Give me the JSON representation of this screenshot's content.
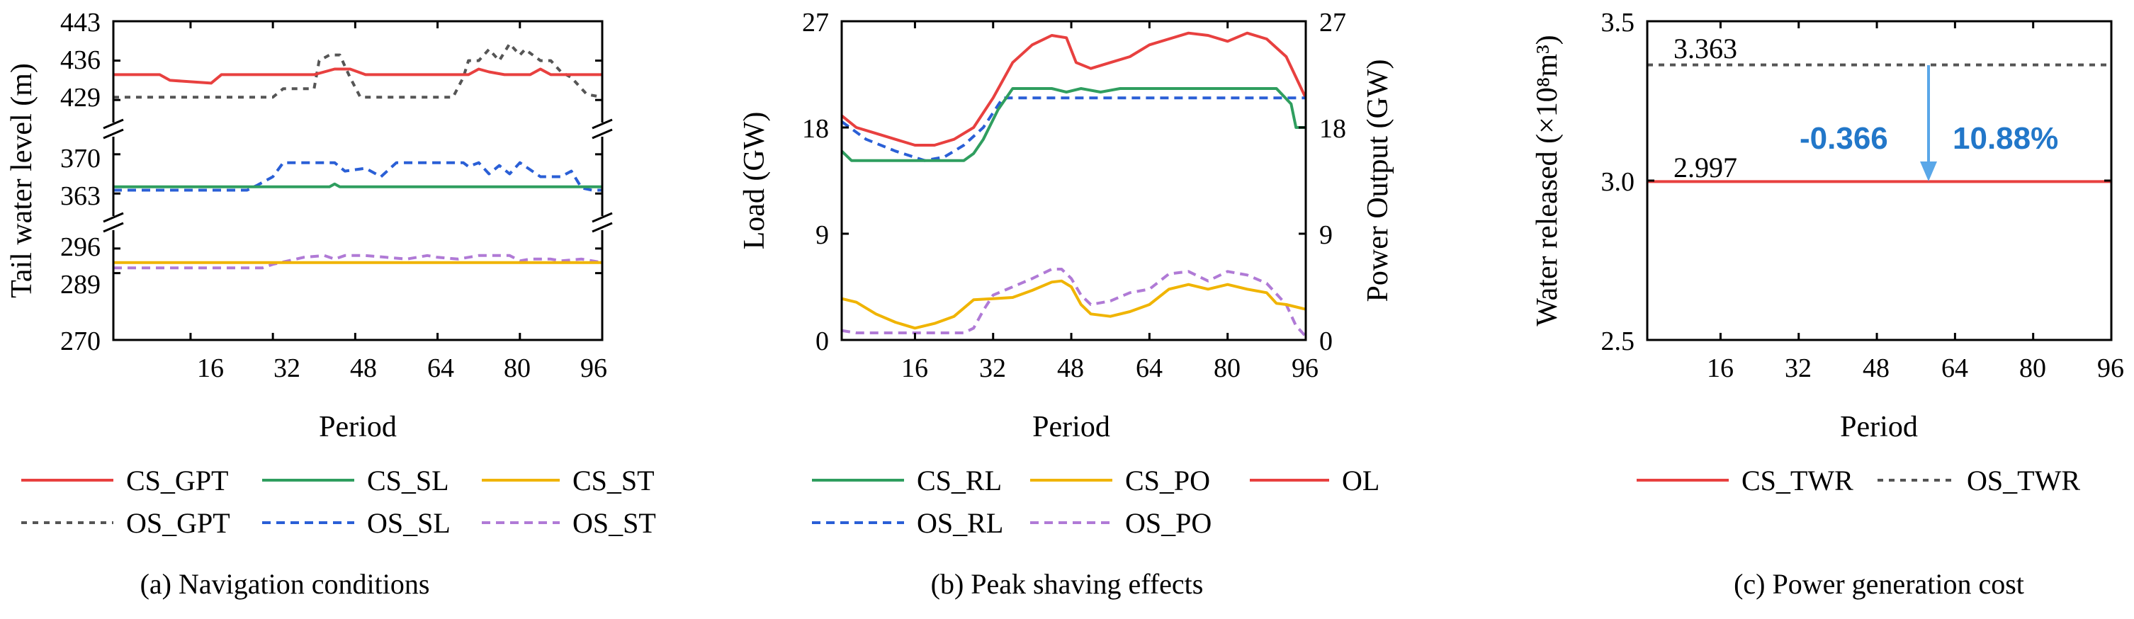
{
  "colors": {
    "gpt_red": "#e8403f",
    "sl_green": "#2f9e5f",
    "st_orange": "#f0b400",
    "os_gray": "#555555",
    "os_blue": "#2a5fd6",
    "os_purple": "#b07ad6",
    "arrow_blue": "#5aa7e8",
    "annotation_blue": "#2277c9"
  },
  "chart_data": [
    {
      "type": "line",
      "caption": "(a) Navigation conditions",
      "xlabel": "Period",
      "ylabel": "Tail water level (m)",
      "xlim": [
        1,
        96
      ],
      "xticks": [
        "16",
        "32",
        "48",
        "64",
        "80",
        "96"
      ],
      "broken_axis": true,
      "yticks": [
        "443",
        "436",
        "429",
        "370",
        "363",
        "296",
        "289",
        "270"
      ],
      "legend": [
        {
          "name": "CS_GPT",
          "style": "solid",
          "color": "#e8403f"
        },
        {
          "name": "CS_SL",
          "style": "solid",
          "color": "#2f9e5f"
        },
        {
          "name": "CS_ST",
          "style": "solid",
          "color": "#f0b400"
        },
        {
          "name": "OS_GPT",
          "style": "dashed",
          "color": "#555555"
        },
        {
          "name": "OS_SL",
          "style": "dashed",
          "color": "#2a5fd6"
        },
        {
          "name": "OS_ST",
          "style": "dashed",
          "color": "#b07ad6"
        }
      ],
      "series": [
        {
          "name": "CS_GPT",
          "points": [
            [
              1,
              433.5
            ],
            [
              10,
              433.5
            ],
            [
              12,
              432.5
            ],
            [
              20,
              432
            ],
            [
              22,
              433.5
            ],
            [
              40,
              433.5
            ],
            [
              44,
              434.5
            ],
            [
              47,
              434.5
            ],
            [
              50,
              433.5
            ],
            [
              70,
              433.5
            ],
            [
              72,
              434.5
            ],
            [
              74,
              434
            ],
            [
              77,
              433.5
            ],
            [
              82,
              433.5
            ],
            [
              84,
              434.5
            ],
            [
              86,
              433.5
            ],
            [
              96,
              433.5
            ]
          ]
        },
        {
          "name": "OS_GPT",
          "points": [
            [
              1,
              429.5
            ],
            [
              32,
              429.5
            ],
            [
              34,
              431
            ],
            [
              40,
              431
            ],
            [
              41,
              436
            ],
            [
              43,
              437
            ],
            [
              45,
              437
            ],
            [
              47,
              433
            ],
            [
              49,
              429.5
            ],
            [
              63,
              429.5
            ],
            [
              67,
              429.5
            ],
            [
              69,
              433
            ],
            [
              70,
              436
            ],
            [
              72,
              436
            ],
            [
              74,
              438
            ],
            [
              76,
              436
            ],
            [
              78,
              439
            ],
            [
              80,
              437
            ],
            [
              81,
              438
            ],
            [
              84,
              436
            ],
            [
              86,
              436
            ],
            [
              88,
              434
            ],
            [
              90,
              433
            ],
            [
              93,
              430
            ],
            [
              96,
              429.5
            ]
          ]
        },
        {
          "name": "CS_SL",
          "points": [
            [
              1,
              364.2
            ],
            [
              43,
              364.2
            ],
            [
              44,
              364.7
            ],
            [
              45,
              364.2
            ],
            [
              96,
              364.2
            ]
          ]
        },
        {
          "name": "OS_SL",
          "points": [
            [
              1,
              363.6
            ],
            [
              27,
              363.6
            ],
            [
              29,
              364.5
            ],
            [
              32,
              366
            ],
            [
              34,
              368.5
            ],
            [
              44,
              368.5
            ],
            [
              46,
              367
            ],
            [
              50,
              367.5
            ],
            [
              53,
              366
            ],
            [
              56,
              368.5
            ],
            [
              69,
              368.5
            ],
            [
              70,
              367.8
            ],
            [
              72,
              368.5
            ],
            [
              74,
              366.5
            ],
            [
              76,
              368
            ],
            [
              78,
              366.5
            ],
            [
              80,
              368.5
            ],
            [
              84,
              366
            ],
            [
              88,
              366
            ],
            [
              90,
              367
            ],
            [
              92,
              364
            ],
            [
              94,
              363.6
            ],
            [
              96,
              363.6
            ]
          ]
        },
        {
          "name": "CS_ST",
          "points": [
            [
              1,
              292
            ],
            [
              96,
              292
            ]
          ]
        },
        {
          "name": "OS_ST",
          "points": [
            [
              1,
              290.5
            ],
            [
              30,
              290.5
            ],
            [
              32,
              291.5
            ],
            [
              38,
              293.5
            ],
            [
              42,
              294
            ],
            [
              44,
              293
            ],
            [
              46,
              294
            ],
            [
              50,
              294
            ],
            [
              54,
              293.5
            ],
            [
              58,
              293
            ],
            [
              62,
              294
            ],
            [
              64,
              293.5
            ],
            [
              68,
              293
            ],
            [
              72,
              294
            ],
            [
              78,
              294
            ],
            [
              80,
              292.5
            ],
            [
              82,
              293
            ],
            [
              86,
              293
            ],
            [
              88,
              292.5
            ],
            [
              92,
              293
            ],
            [
              96,
              292
            ]
          ]
        }
      ]
    },
    {
      "type": "line",
      "caption": "(b) Peak shaving effects",
      "xlabel": "Period",
      "ylabel": "Load (GW)",
      "ylabel_right": "Power Output (GW)",
      "xlim": [
        1,
        96
      ],
      "ylim": [
        0,
        27
      ],
      "xticks": [
        "16",
        "32",
        "48",
        "64",
        "80",
        "96"
      ],
      "yticks": [
        "0",
        "9",
        "18",
        "27"
      ],
      "legend": [
        {
          "name": "CS_RL",
          "style": "solid",
          "color": "#2f9e5f"
        },
        {
          "name": "CS_PO",
          "style": "solid",
          "color": "#f0b400"
        },
        {
          "name": "OL",
          "style": "solid",
          "color": "#e8403f"
        },
        {
          "name": "OS_RL",
          "style": "dashed",
          "color": "#2a5fd6"
        },
        {
          "name": "OS_PO",
          "style": "dashed",
          "color": "#b07ad6"
        }
      ],
      "series": [
        {
          "name": "OL",
          "points": [
            [
              1,
              19
            ],
            [
              4,
              18
            ],
            [
              8,
              17.5
            ],
            [
              12,
              17
            ],
            [
              16,
              16.5
            ],
            [
              20,
              16.5
            ],
            [
              24,
              17
            ],
            [
              28,
              18
            ],
            [
              32,
              20.5
            ],
            [
              36,
              23.5
            ],
            [
              40,
              25
            ],
            [
              44,
              25.8
            ],
            [
              47,
              25.6
            ],
            [
              49,
              23.5
            ],
            [
              52,
              23
            ],
            [
              56,
              23.5
            ],
            [
              60,
              24
            ],
            [
              64,
              25
            ],
            [
              68,
              25.5
            ],
            [
              72,
              26
            ],
            [
              76,
              25.8
            ],
            [
              80,
              25.3
            ],
            [
              84,
              26
            ],
            [
              88,
              25.5
            ],
            [
              92,
              24
            ],
            [
              96,
              20.5
            ]
          ]
        },
        {
          "name": "CS_RL",
          "points": [
            [
              1,
              16
            ],
            [
              3,
              15.2
            ],
            [
              26,
              15.2
            ],
            [
              28,
              15.8
            ],
            [
              30,
              17
            ],
            [
              33,
              19.5
            ],
            [
              36,
              21.3
            ],
            [
              44,
              21.3
            ],
            [
              47,
              21
            ],
            [
              50,
              21.3
            ],
            [
              54,
              21
            ],
            [
              58,
              21.3
            ],
            [
              90,
              21.3
            ],
            [
              93,
              20
            ],
            [
              94,
              18
            ],
            [
              96,
              18
            ]
          ]
        },
        {
          "name": "OS_RL",
          "points": [
            [
              1,
              18.5
            ],
            [
              6,
              17
            ],
            [
              12,
              16
            ],
            [
              18,
              15.2
            ],
            [
              22,
              15.5
            ],
            [
              26,
              16.5
            ],
            [
              30,
              18
            ],
            [
              34,
              20.5
            ],
            [
              36,
              20.5
            ],
            [
              96,
              20.5
            ]
          ]
        },
        {
          "name": "CS_PO",
          "points": [
            [
              1,
              3.5
            ],
            [
              4,
              3.2
            ],
            [
              8,
              2.2
            ],
            [
              12,
              1.5
            ],
            [
              16,
              1
            ],
            [
              20,
              1.4
            ],
            [
              24,
              2
            ],
            [
              28,
              3.4
            ],
            [
              32,
              3.5
            ],
            [
              36,
              3.6
            ],
            [
              40,
              4.2
            ],
            [
              44,
              4.9
            ],
            [
              46,
              5
            ],
            [
              48,
              4.5
            ],
            [
              50,
              3
            ],
            [
              52,
              2.2
            ],
            [
              56,
              2
            ],
            [
              60,
              2.4
            ],
            [
              64,
              3
            ],
            [
              68,
              4.3
            ],
            [
              72,
              4.7
            ],
            [
              76,
              4.3
            ],
            [
              80,
              4.7
            ],
            [
              84,
              4.3
            ],
            [
              88,
              4
            ],
            [
              90,
              3.1
            ],
            [
              92,
              3
            ],
            [
              96,
              2.6
            ]
          ]
        },
        {
          "name": "OS_PO",
          "points": [
            [
              1,
              0.8
            ],
            [
              4,
              0.6
            ],
            [
              26,
              0.6
            ],
            [
              28,
              1
            ],
            [
              30,
              2.5
            ],
            [
              32,
              3.8
            ],
            [
              36,
              4.5
            ],
            [
              40,
              5.2
            ],
            [
              44,
              6
            ],
            [
              46,
              6
            ],
            [
              48,
              5.2
            ],
            [
              50,
              3.8
            ],
            [
              52,
              3
            ],
            [
              56,
              3.3
            ],
            [
              60,
              4
            ],
            [
              64,
              4.3
            ],
            [
              68,
              5.6
            ],
            [
              72,
              5.8
            ],
            [
              76,
              5
            ],
            [
              80,
              5.8
            ],
            [
              84,
              5.5
            ],
            [
              88,
              4.8
            ],
            [
              92,
              3
            ],
            [
              94,
              1.2
            ],
            [
              96,
              0.3
            ]
          ]
        }
      ]
    },
    {
      "type": "line",
      "caption": "(c) Power generation cost",
      "xlabel": "Period",
      "ylabel": "Water released (×10⁸m³)",
      "xlim": [
        1,
        96
      ],
      "ylim": [
        2.5,
        3.5
      ],
      "xticks": [
        "16",
        "32",
        "48",
        "64",
        "80",
        "96"
      ],
      "yticks": [
        "2.5",
        "3.0",
        "3.5"
      ],
      "legend": [
        {
          "name": "CS_TWR",
          "style": "solid",
          "color": "#e8403f"
        },
        {
          "name": "OS_TWR",
          "style": "dashed",
          "color": "#555555"
        }
      ],
      "series": [
        {
          "name": "CS_TWR",
          "value": 2.997
        },
        {
          "name": "OS_TWR",
          "value": 3.363
        }
      ],
      "annotations": {
        "cs_value": "2.997",
        "os_value": "3.363",
        "difference": "-0.366",
        "percent": "10.88%"
      }
    }
  ]
}
